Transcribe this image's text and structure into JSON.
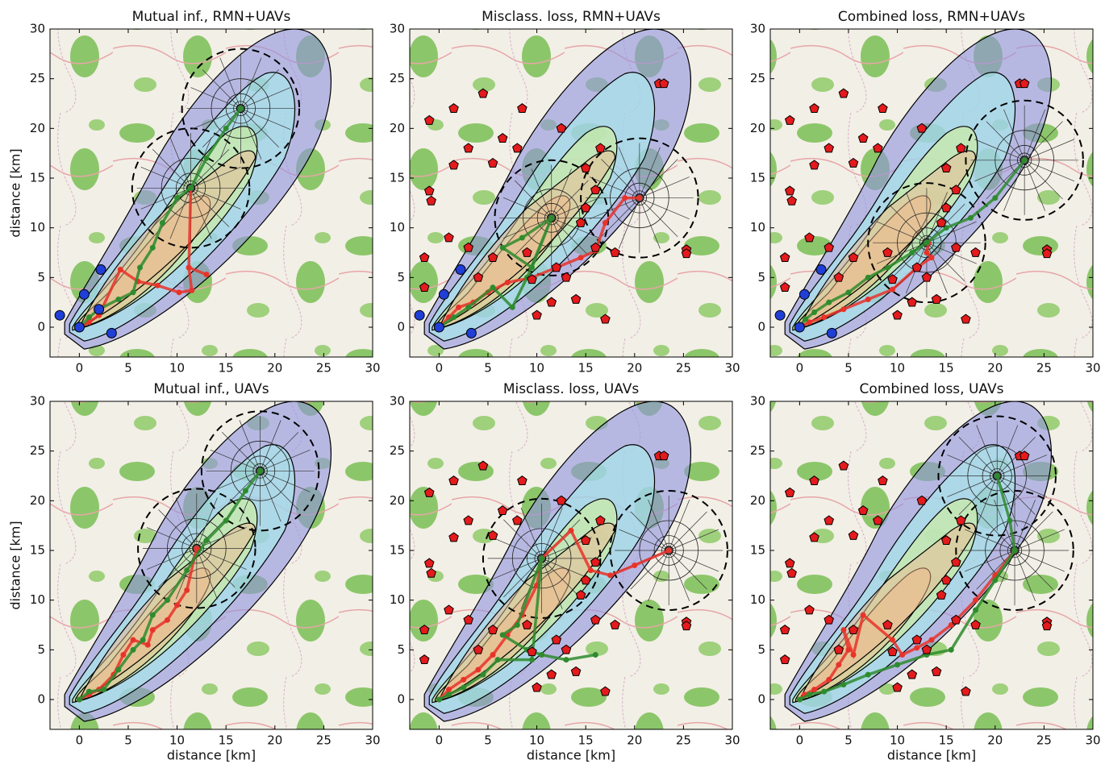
{
  "chart_data": [
    {
      "type": "line",
      "title": "Mutual inf., RMN+UAVs",
      "ylabel": "distance [km]",
      "xlim": [
        -3,
        30
      ],
      "ylim": [
        -3,
        30
      ],
      "xticks": [
        0,
        5,
        10,
        15,
        20,
        25,
        30
      ],
      "yticks": [
        0,
        5,
        10,
        15,
        20,
        25,
        30
      ],
      "series": [
        {
          "color": "#e8332a",
          "x": [
            0,
            1,
            2,
            4.2,
            6,
            8,
            10.2,
            11.5,
            11.2,
            13,
            11.2,
            11.4
          ],
          "y": [
            0,
            0.5,
            1.2,
            5.8,
            4.6,
            4.2,
            3.5,
            3.7,
            6,
            5.3,
            6,
            14
          ]
        },
        {
          "color": "#2e8b2e",
          "x": [
            0,
            1,
            2,
            4,
            5.5,
            6.2,
            7.5,
            8.5,
            10,
            11.4,
            13,
            15,
            16.5
          ],
          "y": [
            0,
            1,
            1.8,
            2.8,
            3.5,
            6,
            8,
            10.5,
            13,
            14,
            17,
            20,
            22
          ]
        }
      ],
      "sensors": [
        {
          "color": "#1f3fd6",
          "marker": "circle",
          "x": [
            -2,
            0.5,
            2.2,
            2,
            3.3,
            0
          ],
          "y": [
            1.2,
            3.3,
            5.8,
            1.8,
            -0.6,
            0
          ]
        }
      ],
      "uav": [
        {
          "x": 11.4,
          "y": 14,
          "r": 6
        },
        {
          "x": 16.5,
          "y": 22,
          "r": 6
        }
      ]
    },
    {
      "type": "line",
      "title": "Misclass. loss, RMN+UAVs",
      "xlim": [
        -3,
        30
      ],
      "ylim": [
        -3,
        30
      ],
      "xticks": [
        0,
        5,
        10,
        15,
        20,
        25,
        30
      ],
      "yticks": [
        0,
        5,
        10,
        15,
        20,
        25,
        30
      ],
      "series": [
        {
          "color": "#e8332a",
          "x": [
            0,
            1,
            2,
            3.5,
            5,
            7,
            9.5,
            12,
            14.5,
            16,
            17,
            19,
            20.5
          ],
          "y": [
            0,
            1,
            2,
            2.5,
            3.5,
            4.5,
            5,
            6,
            7,
            7.7,
            10.5,
            13,
            13
          ]
        },
        {
          "color": "#2e8b2e",
          "x": [
            0,
            1.5,
            3,
            5.5,
            7.5,
            9,
            11.5,
            8.5,
            6.5,
            9.5,
            11.5
          ],
          "y": [
            0,
            1,
            2,
            4,
            2,
            5,
            11,
            9,
            8,
            6,
            11
          ]
        }
      ],
      "sensors": [
        {
          "color": "#1f3fd6",
          "marker": "circle",
          "x": [
            -2,
            0.5,
            2.2,
            3.3,
            0
          ],
          "y": [
            1.2,
            3.3,
            5.8,
            -0.6,
            0
          ]
        },
        {
          "color": "#e41a1c",
          "marker": "pentagon",
          "x": [
            -1,
            1.5,
            4.5,
            8.5,
            -1,
            -0.8,
            1.5,
            3,
            5.5,
            6.5,
            8,
            12.5,
            15,
            16.5,
            -1.5,
            -1.5,
            1,
            3,
            5.5,
            9,
            4,
            9.5,
            11.5,
            12,
            14,
            18,
            15,
            16,
            10,
            13,
            14.5,
            17,
            16,
            22.5,
            23,
            25.3,
            25.3
          ],
          "y": [
            20.8,
            22,
            23.5,
            22,
            13.7,
            12.7,
            16.3,
            18,
            16.5,
            19,
            18,
            20,
            16,
            18,
            7,
            4,
            9,
            8,
            7,
            7.5,
            5,
            4.8,
            2.5,
            6,
            2.8,
            7.5,
            12,
            13.8,
            1.2,
            5,
            10.5,
            0.8,
            8,
            24.5,
            24.5,
            7.8,
            7.4
          ]
        }
      ],
      "uav": [
        {
          "x": 11.5,
          "y": 11,
          "r": 5.8
        },
        {
          "x": 20.5,
          "y": 13,
          "r": 6
        }
      ]
    },
    {
      "type": "line",
      "title": "Combined loss, RMN+UAVs",
      "xlim": [
        -3,
        30
      ],
      "ylim": [
        -3,
        30
      ],
      "xticks": [
        0,
        5,
        10,
        15,
        20,
        25,
        30
      ],
      "yticks": [
        0,
        5,
        10,
        15,
        20,
        25,
        30
      ],
      "series": [
        {
          "color": "#e8332a",
          "x": [
            0,
            1,
            2.5,
            4.5,
            7,
            9.5,
            12,
            13.5,
            13,
            13.2
          ],
          "y": [
            0,
            0.5,
            1,
            1.8,
            2.8,
            3.8,
            6,
            7,
            7.5,
            8.5
          ]
        },
        {
          "color": "#2e8b2e",
          "x": [
            0,
            0.6,
            1.5,
            3,
            5,
            7,
            9,
            11.5,
            13,
            15,
            17.5,
            20,
            23
          ],
          "y": [
            0,
            0.8,
            1.5,
            2.5,
            3.5,
            5,
            6,
            7.5,
            8.5,
            10,
            11,
            13,
            16.8
          ]
        }
      ],
      "sensors": [
        {
          "color": "#1f3fd6",
          "marker": "circle",
          "x": [
            -2,
            0.5,
            2.2,
            3.3,
            0
          ],
          "y": [
            1.2,
            3.3,
            5.8,
            -0.6,
            0
          ]
        },
        {
          "color": "#e41a1c",
          "marker": "pentagon",
          "x": [
            -1,
            1.5,
            4.5,
            8.5,
            -1,
            -0.8,
            1.5,
            3,
            5.5,
            6.5,
            8,
            12.5,
            15,
            16.5,
            -1.5,
            -1.5,
            1,
            3,
            5.5,
            9,
            4,
            9.5,
            11.5,
            12,
            14,
            18,
            15,
            16,
            10,
            13,
            14.5,
            17,
            16,
            22.5,
            23,
            25.3,
            25.3
          ],
          "y": [
            20.8,
            22,
            23.5,
            22,
            13.7,
            12.7,
            16.3,
            18,
            16.5,
            19,
            18,
            20,
            16,
            18,
            7,
            4,
            9,
            8,
            7,
            7.5,
            5,
            4.8,
            2.5,
            6,
            2.8,
            7.5,
            12,
            13.8,
            1.2,
            5,
            10.5,
            0.8,
            8,
            24.5,
            24.5,
            7.8,
            7.4
          ]
        }
      ],
      "uav": [
        {
          "x": 13,
          "y": 8.5,
          "r": 6
        },
        {
          "x": 23,
          "y": 16.8,
          "r": 6
        }
      ]
    },
    {
      "type": "line",
      "title": "Mutual inf., UAVs",
      "xlabel": "distance [km]",
      "ylabel": "distance [km]",
      "xlim": [
        -3,
        30
      ],
      "ylim": [
        -3,
        30
      ],
      "xticks": [
        0,
        5,
        10,
        15,
        20,
        25,
        30
      ],
      "yticks": [
        0,
        5,
        10,
        15,
        20,
        25,
        30
      ],
      "series": [
        {
          "color": "#e8332a",
          "x": [
            0,
            1,
            2,
            3.5,
            4.5,
            5.5,
            7,
            7.5,
            9,
            10,
            11,
            12
          ],
          "y": [
            0,
            0.5,
            1,
            2.5,
            4.5,
            6,
            5.5,
            7,
            8,
            9.5,
            11,
            15.2
          ]
        },
        {
          "color": "#2e8b2e",
          "x": [
            0,
            1,
            2.5,
            4,
            5.5,
            6.5,
            7.5,
            9,
            11,
            13,
            15,
            17,
            18.5
          ],
          "y": [
            0,
            0.8,
            1,
            3,
            5,
            6,
            8.5,
            10,
            13,
            16,
            18,
            21,
            23
          ]
        }
      ],
      "sensors": [],
      "uav": [
        {
          "x": 12,
          "y": 15.2,
          "r": 6
        },
        {
          "x": 18.5,
          "y": 23,
          "r": 6
        }
      ]
    },
    {
      "type": "line",
      "title": "Misclass. loss, UAVs",
      "xlabel": "distance [km]",
      "xlim": [
        -3,
        30
      ],
      "ylim": [
        -3,
        30
      ],
      "xticks": [
        0,
        5,
        10,
        15,
        20,
        25,
        30
      ],
      "yticks": [
        0,
        5,
        10,
        15,
        20,
        25,
        30
      ],
      "series": [
        {
          "color": "#e8332a",
          "x": [
            0,
            1,
            2.5,
            4,
            5.5,
            7,
            8.5,
            10,
            10.5,
            13.5,
            15.5,
            17.5,
            20,
            23.5
          ],
          "y": [
            0,
            1,
            2,
            3,
            4.5,
            6.5,
            8.5,
            11.5,
            14.2,
            17,
            13,
            12.5,
            13.5,
            15
          ]
        },
        {
          "color": "#2e8b2e",
          "x": [
            0,
            1,
            2.5,
            4.5,
            6,
            9.5,
            10.5,
            8,
            6.5,
            9,
            10.5,
            13,
            16
          ],
          "y": [
            0,
            0.5,
            1.2,
            2.5,
            4,
            4,
            14.2,
            7.5,
            6.5,
            5,
            4.5,
            4,
            4.5
          ]
        }
      ],
      "sensors": [
        {
          "color": "#e41a1c",
          "marker": "pentagon",
          "x": [
            -1,
            1.5,
            4.5,
            8.5,
            -1,
            -0.8,
            1.5,
            3,
            5.5,
            6.5,
            8,
            12.5,
            15,
            16.5,
            -1.5,
            -1.5,
            1,
            3,
            5.5,
            9,
            4,
            9.5,
            11.5,
            12,
            14,
            18,
            15,
            16,
            10,
            13,
            14.5,
            17,
            16,
            22.5,
            23,
            25.3,
            25.3
          ],
          "y": [
            20.8,
            22,
            23.5,
            22,
            13.7,
            12.7,
            16.3,
            18,
            16.5,
            19,
            18,
            20,
            16,
            18,
            7,
            4,
            9,
            8,
            7,
            7.5,
            5,
            4.8,
            2.5,
            6,
            2.8,
            7.5,
            12,
            13.8,
            1.2,
            5,
            10.5,
            0.8,
            8,
            24.5,
            24.5,
            7.8,
            7.4
          ]
        }
      ],
      "uav": [
        {
          "x": 10.5,
          "y": 14.2,
          "r": 6
        },
        {
          "x": 23.5,
          "y": 15,
          "r": 6
        }
      ]
    },
    {
      "type": "line",
      "title": "Combined loss, UAVs",
      "xlabel": "distance [km]",
      "xlim": [
        -3,
        30
      ],
      "ylim": [
        -3,
        30
      ],
      "xticks": [
        0,
        5,
        10,
        15,
        20,
        25,
        30
      ],
      "yticks": [
        0,
        5,
        10,
        15,
        20,
        25,
        30
      ],
      "series": [
        {
          "color": "#e8332a",
          "x": [
            0,
            0.5,
            1.5,
            3,
            4,
            5,
            4.5,
            5.5,
            6.5,
            9.5,
            10.5,
            12,
            13.5,
            15.5,
            18,
            20,
            22
          ],
          "y": [
            0,
            0.5,
            1,
            2,
            3.5,
            5,
            7,
            4.5,
            8.5,
            6,
            4.5,
            5.2,
            6,
            7.5,
            10,
            12.5,
            15
          ]
        },
        {
          "color": "#2e8b2e",
          "x": [
            0,
            1,
            2.5,
            4.5,
            7,
            10,
            13,
            15.5,
            18,
            20,
            22,
            21.5,
            20.2
          ],
          "y": [
            0,
            0.5,
            0.8,
            1.5,
            2.5,
            3.5,
            4.5,
            5,
            9,
            12,
            15,
            18,
            22.5
          ]
        }
      ],
      "sensors": [
        {
          "color": "#e41a1c",
          "marker": "pentagon",
          "x": [
            -1,
            1.5,
            4.5,
            8.5,
            -1,
            -0.8,
            1.5,
            3,
            5.5,
            6.5,
            8,
            12.5,
            15,
            16.5,
            -1.5,
            -1.5,
            1,
            3,
            5.5,
            9,
            4,
            9.5,
            11.5,
            12,
            14,
            18,
            15,
            16,
            10,
            13,
            14.5,
            17,
            16,
            22.5,
            23,
            25.3,
            25.3
          ],
          "y": [
            20.8,
            22,
            23.5,
            22,
            13.7,
            12.7,
            16.3,
            18,
            16.5,
            19,
            18,
            20,
            16,
            18,
            7,
            4,
            9,
            8,
            7,
            7.5,
            5,
            4.8,
            2.5,
            6,
            2.8,
            7.5,
            12,
            13.8,
            1.2,
            5,
            10.5,
            0.8,
            8,
            24.5,
            24.5,
            7.8,
            7.4
          ]
        }
      ],
      "uav": [
        {
          "x": 20.2,
          "y": 22.5,
          "r": 6
        },
        {
          "x": 22,
          "y": 15,
          "r": 6
        }
      ]
    }
  ]
}
